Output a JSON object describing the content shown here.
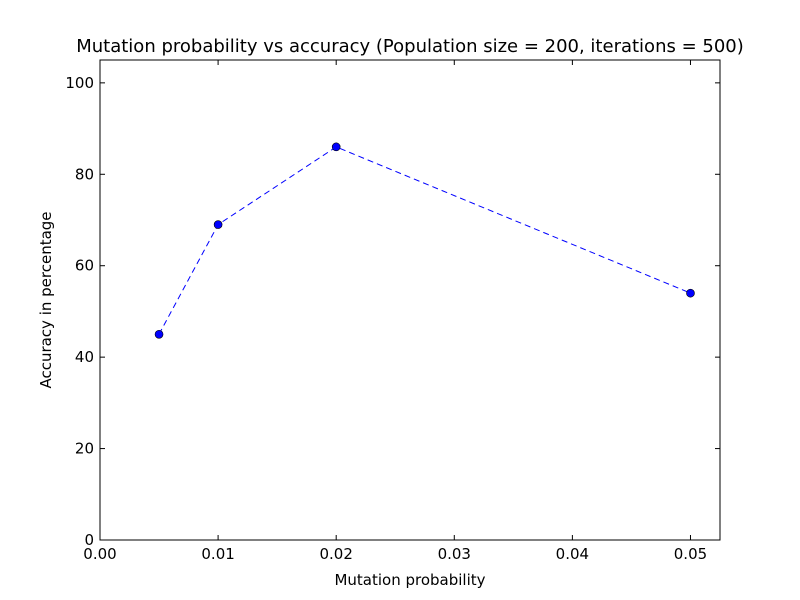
{
  "chart_data": {
    "type": "line",
    "title": "Mutation probability vs accuracy (Population size = 200, iterations = 500)",
    "xlabel": "Mutation probability",
    "ylabel": "Accuracy in percentage",
    "xlim": [
      0.0,
      0.0525
    ],
    "ylim": [
      0,
      105
    ],
    "x_ticks": [
      0.0,
      0.01,
      0.02,
      0.03,
      0.04,
      0.05
    ],
    "x_tick_labels": [
      "0.00",
      "0.01",
      "0.02",
      "0.03",
      "0.04",
      "0.05"
    ],
    "y_ticks": [
      0,
      20,
      40,
      60,
      80,
      100
    ],
    "y_tick_labels": [
      "0",
      "20",
      "40",
      "60",
      "80",
      "100"
    ],
    "grid": false,
    "series": [
      {
        "x": [
          0.005,
          0.01,
          0.02,
          0.05
        ],
        "y": [
          45,
          69,
          86,
          54
        ],
        "color": "#0000ff",
        "line_style": "dashed",
        "marker": "circle"
      }
    ]
  }
}
